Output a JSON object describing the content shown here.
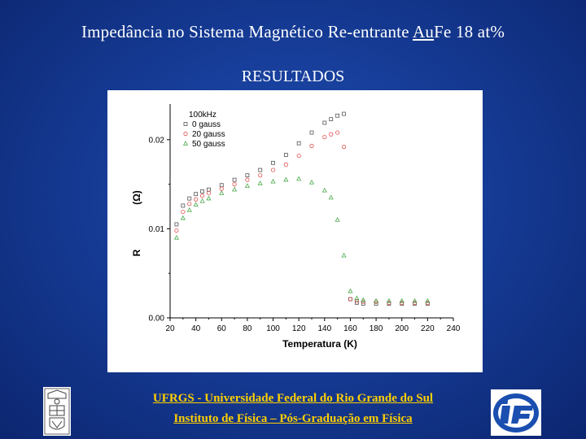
{
  "slide": {
    "title_before": "Impedância no Sistema Magnético Re-entrante ",
    "title_underlined": "Au",
    "title_after": "Fe 18 at%",
    "subtitle": "RESULTADOS",
    "footer_line1": "UFRGS - Universidade Federal do Rio Grande do Sul",
    "footer_line2": "Instituto de Física – Pós-Graduação em Física"
  },
  "chart_data": {
    "type": "scatter",
    "xlabel": "Temperatura (K)",
    "ylabel": "R (Ω)",
    "ylabel_parts": {
      "letter": "R",
      "unit": "(Ω)"
    },
    "xlim": [
      20,
      240
    ],
    "ylim": [
      0,
      0.024
    ],
    "xticks": [
      20,
      40,
      60,
      80,
      100,
      120,
      140,
      160,
      180,
      200,
      220,
      240
    ],
    "yticks": [
      0,
      0.01,
      0.02
    ],
    "ytick_labels": [
      "0.00",
      "0.01",
      "0.02"
    ],
    "legend_title": "100kHz",
    "legend_placement": "top-left",
    "grid": false,
    "series": [
      {
        "name": "0 gauss",
        "marker": "square",
        "color": "#555555",
        "x": [
          25,
          30,
          35,
          40,
          45,
          50,
          60,
          70,
          80,
          90,
          100,
          110,
          120,
          130,
          140,
          145,
          150,
          155,
          160,
          165,
          170,
          180,
          190,
          200,
          210,
          220
        ],
        "y": [
          0.0105,
          0.0126,
          0.0134,
          0.0139,
          0.0142,
          0.0144,
          0.0149,
          0.0155,
          0.016,
          0.0166,
          0.0174,
          0.0183,
          0.0196,
          0.0208,
          0.0219,
          0.0223,
          0.0227,
          0.0229,
          0.0021,
          0.0017,
          0.0016,
          0.0016,
          0.0016,
          0.0016,
          0.0016,
          0.0016
        ]
      },
      {
        "name": "20 gauss",
        "marker": "circle",
        "color": "#e05050",
        "x": [
          25,
          30,
          35,
          40,
          45,
          50,
          60,
          70,
          80,
          90,
          100,
          110,
          120,
          130,
          140,
          145,
          150,
          155,
          160,
          165,
          170,
          180,
          190,
          200,
          210,
          220
        ],
        "y": [
          0.0098,
          0.0119,
          0.0128,
          0.0133,
          0.0137,
          0.014,
          0.0145,
          0.015,
          0.0155,
          0.016,
          0.0166,
          0.0172,
          0.0182,
          0.0193,
          0.0203,
          0.0206,
          0.0208,
          0.0192,
          0.0021,
          0.0019,
          0.0018,
          0.0018,
          0.0017,
          0.0017,
          0.0017,
          0.0017
        ]
      },
      {
        "name": "50 gauss",
        "marker": "triangle",
        "color": "#4aa84a",
        "x": [
          25,
          30,
          35,
          40,
          45,
          50,
          60,
          70,
          80,
          90,
          100,
          110,
          120,
          130,
          140,
          145,
          150,
          155,
          160,
          165,
          170,
          180,
          190,
          200,
          210,
          220
        ],
        "y": [
          0.009,
          0.0112,
          0.0121,
          0.0127,
          0.0131,
          0.0134,
          0.014,
          0.0144,
          0.0148,
          0.0151,
          0.0153,
          0.0155,
          0.0156,
          0.0152,
          0.0143,
          0.0135,
          0.011,
          0.007,
          0.003,
          0.0022,
          0.002,
          0.0019,
          0.0019,
          0.0019,
          0.0019,
          0.0019
        ]
      }
    ]
  }
}
